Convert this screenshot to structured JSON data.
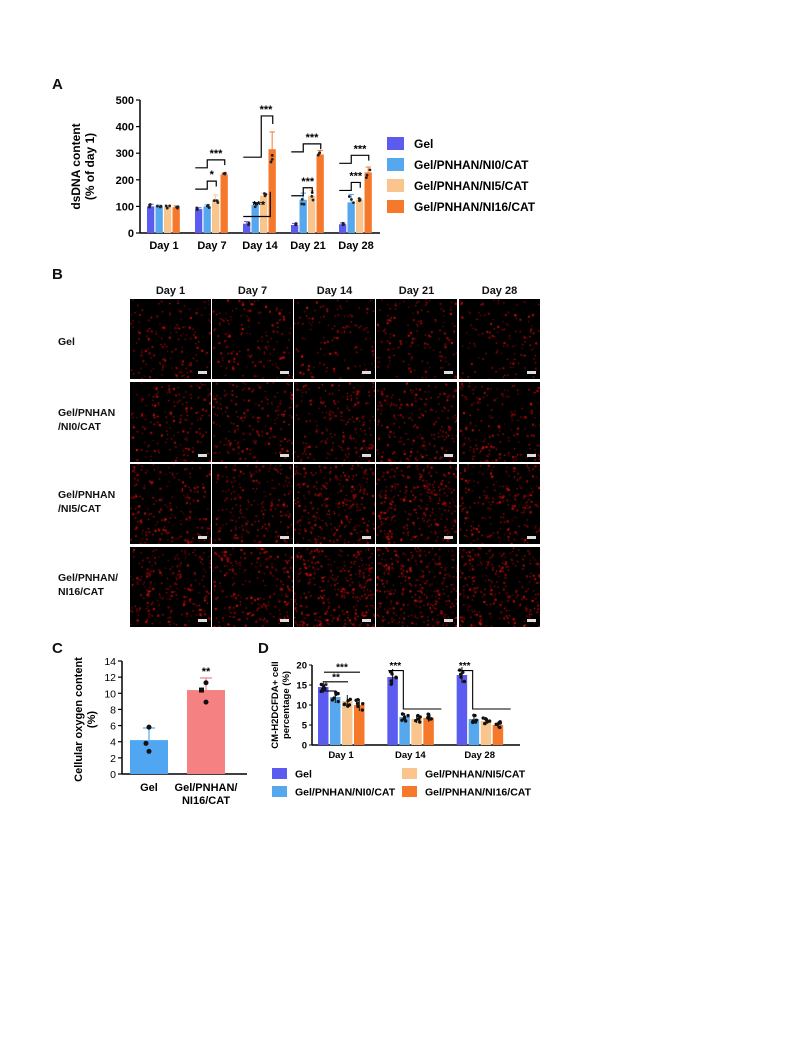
{
  "panels": {
    "a": "A",
    "b": "B",
    "c": "C",
    "d": "D"
  },
  "colors": {
    "gel": "#5b5bf0",
    "ni0": "#55a7ee",
    "ni5": "#f9c58c",
    "ni16": "#f6782a",
    "c_gel": "#51a6f2",
    "c_ni16": "#f58182"
  },
  "chart_data": [
    {
      "id": "A",
      "type": "bar",
      "ylabel": "dsDNA content\n(% of day 1)",
      "ylim": [
        0,
        500
      ],
      "yticks": [
        0,
        100,
        200,
        300,
        400,
        500
      ],
      "categories": [
        "Day 1",
        "Day 7",
        "Day 14",
        "Day 21",
        "Day 28"
      ],
      "series": [
        {
          "name": "Gel",
          "values": [
            100,
            90,
            35,
            30,
            33
          ],
          "err": [
            8,
            5,
            8,
            6,
            5
          ],
          "color": "#5b5bf0"
        },
        {
          "name": "Gel/PNHAN/NI0/CAT",
          "values": [
            100,
            100,
            105,
            125,
            115
          ],
          "err": [
            5,
            6,
            10,
            25,
            30
          ],
          "color": "#55a7ee"
        },
        {
          "name": "Gel/PNHAN/NI5/CAT",
          "values": [
            98,
            125,
            140,
            140,
            125
          ],
          "err": [
            5,
            18,
            10,
            20,
            5
          ],
          "color": "#f9c58c"
        },
        {
          "name": "Gel/PNHAN/NI16/CAT",
          "values": [
            97,
            220,
            315,
            295,
            228
          ],
          "err": [
            5,
            5,
            65,
            15,
            20
          ],
          "color": "#f6782a"
        }
      ],
      "annotations": [
        {
          "category": "Day 7",
          "label": "*"
        },
        {
          "category": "Day 7",
          "label": "***"
        },
        {
          "category": "Day 14",
          "label": "***"
        },
        {
          "category": "Day 14",
          "label": "***"
        },
        {
          "category": "Day 21",
          "label": "***"
        },
        {
          "category": "Day 21",
          "label": "***"
        },
        {
          "category": "Day 28",
          "label": "***"
        },
        {
          "category": "Day 28",
          "label": "***"
        }
      ],
      "legend": "right"
    },
    {
      "id": "C",
      "type": "bar",
      "ylabel": "Cellular oxygen content\n(%)",
      "ylim": [
        0,
        14
      ],
      "yticks": [
        0,
        2,
        4,
        6,
        8,
        10,
        12,
        14
      ],
      "categories": [
        "Gel",
        "Gel/PNHAN/\nNI16/CAT"
      ],
      "values": [
        4.2,
        10.4
      ],
      "err": [
        1.5,
        1.5
      ],
      "points": [
        [
          5.8,
          3.8,
          2.8
        ],
        [
          11.3,
          10.4,
          8.9
        ]
      ],
      "colors": [
        "#51a6f2",
        "#f58182"
      ],
      "annotations": [
        {
          "category": "Gel/PNHAN/\nNI16/CAT",
          "label": "**"
        }
      ]
    },
    {
      "id": "D",
      "type": "bar",
      "ylabel": "CM-H2DCFDA+ cell\npercentage (%)",
      "ylim": [
        0,
        20
      ],
      "yticks": [
        0,
        5,
        10,
        15,
        20
      ],
      "categories": [
        "Day 1",
        "Day 14",
        "Day 28"
      ],
      "series": [
        {
          "name": "Gel",
          "values": [
            14.5,
            17,
            17.5
          ],
          "err": [
            1.5,
            2,
            2
          ],
          "color": "#5b5bf0"
        },
        {
          "name": "Gel/PNHAN/NI0/CAT",
          "values": [
            12,
            7,
            6.5
          ],
          "err": [
            1.5,
            1,
            1
          ],
          "color": "#55a7ee"
        },
        {
          "name": "Gel/PNHAN/NI5/CAT",
          "values": [
            11,
            6.5,
            6
          ],
          "err": [
            1.5,
            1,
            1
          ],
          "color": "#f9c58c"
        },
        {
          "name": "Gel/PNHAN/NI16/CAT",
          "values": [
            10,
            6.8,
            5
          ],
          "err": [
            1.5,
            1,
            0.8
          ],
          "color": "#f6782a"
        }
      ],
      "annotations": [
        {
          "category": "Day 1",
          "label": "*"
        },
        {
          "category": "Day 1",
          "label": "**"
        },
        {
          "category": "Day 1",
          "label": "***"
        },
        {
          "category": "Day 14",
          "label": "***"
        },
        {
          "category": "Day 28",
          "label": "***"
        }
      ],
      "legend": "bottom"
    }
  ],
  "micrographs": {
    "columns": [
      "Day 1",
      "Day 7",
      "Day 14",
      "Day 21",
      "Day 28"
    ],
    "rows": [
      "Gel",
      "Gel/PNHAN\n/NI0/CAT",
      "Gel/PNHAN\n/NI5/CAT",
      "Gel/PNHAN/\nNI16/CAT"
    ],
    "density": [
      [
        0.35,
        0.35,
        0.25,
        0.3,
        0.25
      ],
      [
        0.45,
        0.5,
        0.55,
        0.55,
        0.45
      ],
      [
        0.55,
        0.55,
        0.8,
        0.9,
        0.6
      ],
      [
        0.6,
        0.65,
        0.95,
        1.0,
        0.85
      ]
    ]
  }
}
